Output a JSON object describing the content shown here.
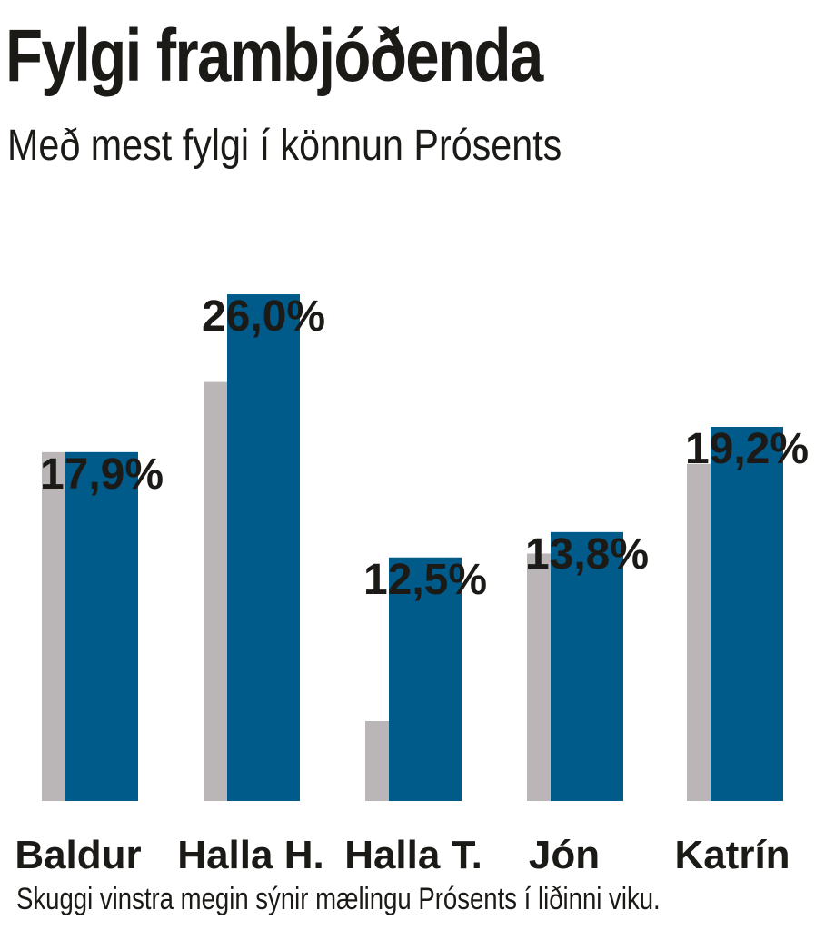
{
  "title": "Fylgi frambjóðenda",
  "subtitle": "Með mest fylgi í könnun Prósents",
  "note": "Skuggi vinstra megin sýnir mælingu Prósents í liðinni viku.",
  "colors": {
    "current": "#005b8b",
    "previous": "#bab6b8",
    "text": "#1c1a17"
  },
  "chart_data": {
    "type": "bar",
    "categories": [
      "Baldur",
      "Halla H.",
      "Halla T.",
      "Jón",
      "Katrín"
    ],
    "series": [
      {
        "values": [
          17.9,
          21.5,
          4.1,
          12.7,
          17.3
        ]
      },
      {
        "values": [
          17.9,
          26.0,
          12.5,
          13.8,
          19.2
        ]
      }
    ],
    "data_labels": [
      "17,9%",
      "26,0%",
      "12,5%",
      "13,8%",
      "19,2%"
    ],
    "ylim": [
      0,
      28
    ],
    "grid": false,
    "legend": "none"
  }
}
